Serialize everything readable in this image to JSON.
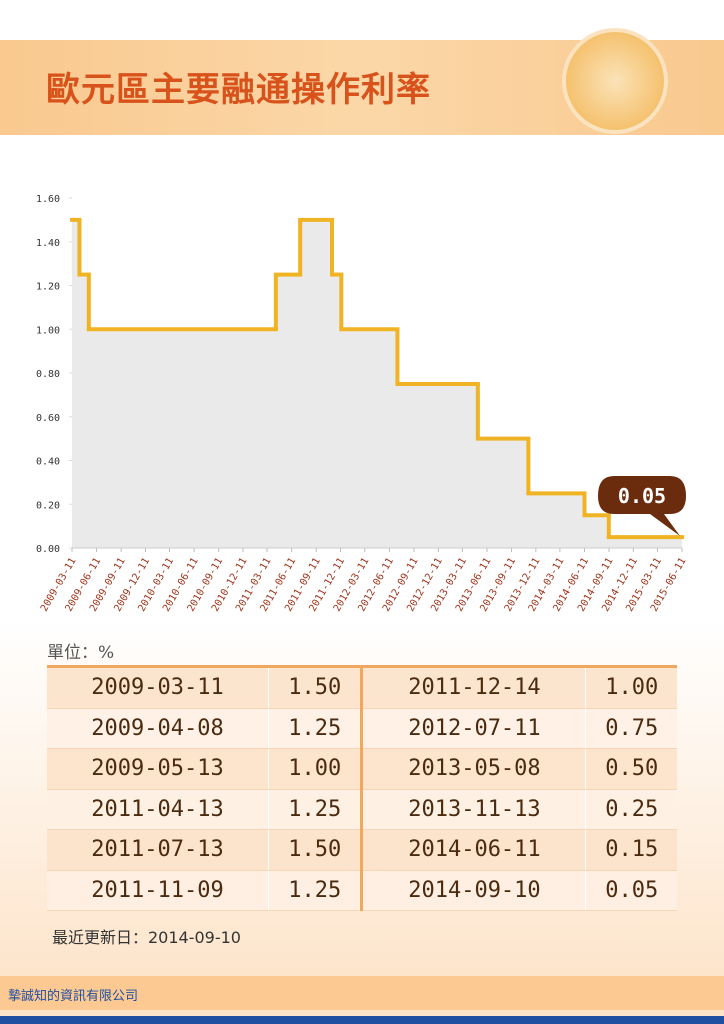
{
  "title": "歐元區主要融通操作利率",
  "chart_data": {
    "type": "step-area",
    "color": "#f0b323",
    "fill": "#d9d9d9",
    "x": [
      "2009-03-11",
      "2009-04-08",
      "2009-05-13",
      "2011-04-13",
      "2011-07-13",
      "2011-11-09",
      "2011-12-14",
      "2012-07-11",
      "2013-05-08",
      "2013-11-13",
      "2014-06-11",
      "2014-09-10"
    ],
    "values": [
      1.5,
      1.25,
      1.0,
      1.25,
      1.5,
      1.25,
      1.0,
      0.75,
      0.5,
      0.25,
      0.15,
      0.05
    ],
    "xlim": [
      "2009-03-11",
      "2015-06-11"
    ],
    "xticks": [
      "2009-03-11",
      "2009-06-11",
      "2009-09-11",
      "2009-12-11",
      "2010-03-11",
      "2010-06-11",
      "2010-09-11",
      "2010-12-11",
      "2011-03-11",
      "2011-06-11",
      "2011-09-11",
      "2011-12-11",
      "2012-03-11",
      "2012-06-11",
      "2012-09-11",
      "2012-12-11",
      "2013-03-11",
      "2013-06-11",
      "2013-09-11",
      "2013-12-11",
      "2014-03-11",
      "2014-06-11",
      "2014-09-11",
      "2014-12-11",
      "2015-03-11",
      "2015-06-11"
    ],
    "ylim": [
      0,
      1.6
    ],
    "yticks": [
      {
        "value": 0,
        "label": "0.00"
      },
      {
        "value": 0.2,
        "label": "0.20"
      },
      {
        "value": 0.4,
        "label": "0.40"
      },
      {
        "value": 0.6,
        "label": "0.60"
      },
      {
        "value": 0.8,
        "label": "0.80"
      },
      {
        "value": 1,
        "label": "1.00"
      },
      {
        "value": 1.2,
        "label": "1.20"
      },
      {
        "value": 1.4,
        "label": "1.40"
      },
      {
        "value": 1.6,
        "label": "1.60"
      }
    ],
    "annotation": "0.05"
  },
  "unit": "單位：%",
  "table": {
    "rows": [
      [
        "2009-03-11",
        "1.50",
        "2011-12-14",
        "1.00"
      ],
      [
        "2009-04-08",
        "1.25",
        "2012-07-11",
        "0.75"
      ],
      [
        "2009-05-13",
        "1.00",
        "2013-05-08",
        "0.50"
      ],
      [
        "2011-04-13",
        "1.25",
        "2013-11-13",
        "0.25"
      ],
      [
        "2011-07-13",
        "1.50",
        "2014-06-11",
        "0.15"
      ],
      [
        "2011-11-09",
        "1.25",
        "2014-09-10",
        "0.05"
      ]
    ]
  },
  "updated": "最近更新日：2014-09-10",
  "footer": "摯誠知的資訊有限公司"
}
